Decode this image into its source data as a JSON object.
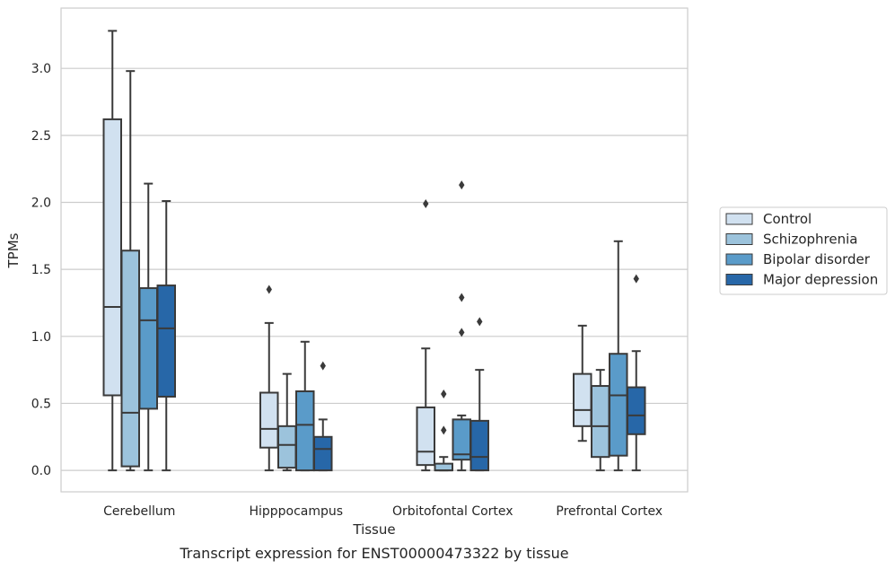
{
  "caption": "Transcript expression for ENST00000473322 by tissue",
  "chart_data": {
    "type": "box",
    "xlabel": "Tissue",
    "ylabel": "TPMs",
    "ylim": [
      -0.16,
      3.45
    ],
    "yticks": [
      "0.0",
      "0.5",
      "1.0",
      "1.5",
      "2.0",
      "2.5",
      "3.0"
    ],
    "categories": [
      "Cerebellum",
      "Hipppocampus",
      "Orbitofontal Cortex",
      "Prefrontal Cortex"
    ],
    "grid": true,
    "legend_position": "right",
    "colors": [
      "#d1e1f0",
      "#9cc3dc",
      "#5a9bc9",
      "#2767a8"
    ],
    "edge_color": "#3a3a3a",
    "series": [
      {
        "name": "Control",
        "boxes": [
          {
            "whislo": 0.0,
            "q1": 0.56,
            "med": 1.22,
            "q3": 2.62,
            "whishi": 3.28,
            "fliers": []
          },
          {
            "whislo": 0.0,
            "q1": 0.17,
            "med": 0.31,
            "q3": 0.58,
            "whishi": 1.1,
            "fliers": [
              1.35
            ]
          },
          {
            "whislo": 0.0,
            "q1": 0.04,
            "med": 0.14,
            "q3": 0.47,
            "whishi": 0.91,
            "fliers": [
              1.99
            ]
          },
          {
            "whislo": 0.22,
            "q1": 0.33,
            "med": 0.45,
            "q3": 0.72,
            "whishi": 1.08,
            "fliers": []
          }
        ]
      },
      {
        "name": "Schizophrenia",
        "boxes": [
          {
            "whislo": 0.0,
            "q1": 0.03,
            "med": 0.43,
            "q3": 1.64,
            "whishi": 2.98,
            "fliers": []
          },
          {
            "whislo": 0.0,
            "q1": 0.02,
            "med": 0.19,
            "q3": 0.33,
            "whishi": 0.72,
            "fliers": []
          },
          {
            "whislo": 0.0,
            "q1": 0.0,
            "med": 0.0,
            "q3": 0.05,
            "whishi": 0.1,
            "fliers": [
              0.57,
              0.3
            ]
          },
          {
            "whislo": 0.0,
            "q1": 0.1,
            "med": 0.33,
            "q3": 0.63,
            "whishi": 0.75,
            "fliers": []
          }
        ]
      },
      {
        "name": "Bipolar disorder",
        "boxes": [
          {
            "whislo": 0.0,
            "q1": 0.46,
            "med": 1.12,
            "q3": 1.36,
            "whishi": 2.14,
            "fliers": []
          },
          {
            "whislo": 0.0,
            "q1": 0.0,
            "med": 0.34,
            "q3": 0.59,
            "whishi": 0.96,
            "fliers": []
          },
          {
            "whislo": 0.0,
            "q1": 0.08,
            "med": 0.12,
            "q3": 0.38,
            "whishi": 0.41,
            "fliers": [
              2.13,
              1.29,
              1.03
            ]
          },
          {
            "whislo": 0.0,
            "q1": 0.11,
            "med": 0.56,
            "q3": 0.87,
            "whishi": 1.71,
            "fliers": []
          }
        ]
      },
      {
        "name": "Major depression",
        "boxes": [
          {
            "whislo": 0.0,
            "q1": 0.55,
            "med": 1.06,
            "q3": 1.38,
            "whishi": 2.01,
            "fliers": []
          },
          {
            "whislo": 0.0,
            "q1": 0.0,
            "med": 0.16,
            "q3": 0.25,
            "whishi": 0.38,
            "fliers": [
              0.78
            ]
          },
          {
            "whislo": 0.0,
            "q1": 0.0,
            "med": 0.1,
            "q3": 0.37,
            "whishi": 0.75,
            "fliers": [
              1.11
            ]
          },
          {
            "whislo": 0.0,
            "q1": 0.27,
            "med": 0.41,
            "q3": 0.62,
            "whishi": 0.89,
            "fliers": [
              1.43
            ]
          }
        ]
      }
    ]
  }
}
